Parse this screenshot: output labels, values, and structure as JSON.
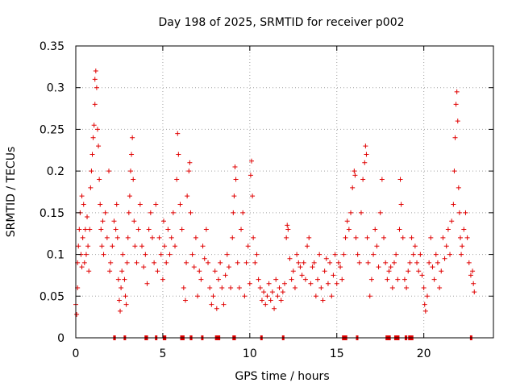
{
  "chart_data": {
    "type": "scatter",
    "title": "Day 198 of 2025, SRMTID for receiver p002",
    "xlabel": "GPS time / hours",
    "ylabel": "SRMTID / TECUs",
    "xlim": [
      0,
      24
    ],
    "ylim": [
      0,
      0.35
    ],
    "xticks": [
      0,
      5,
      10,
      15,
      20
    ],
    "xtick_labels": [
      "0",
      "5",
      "10",
      "15",
      "20"
    ],
    "yticks": [
      0,
      0.05,
      0.1,
      0.15,
      0.2,
      0.25,
      0.3,
      0.35
    ],
    "ytick_labels": [
      "0",
      "0.05",
      "0.1",
      "0.15",
      "0.2",
      "0.25",
      "0.3",
      "0.35"
    ],
    "grid": true,
    "marker": "+",
    "color": "#e00000",
    "series": [
      {
        "name": "SRMTID",
        "points": [
          [
            0.0,
            0.04
          ],
          [
            0.05,
            0.028
          ],
          [
            0.1,
            0.06
          ],
          [
            0.1,
            0.09
          ],
          [
            0.15,
            0.11
          ],
          [
            0.2,
            0.13
          ],
          [
            0.25,
            0.15
          ],
          [
            0.3,
            0.1
          ],
          [
            0.35,
            0.17
          ],
          [
            0.35,
            0.085
          ],
          [
            0.4,
            0.12
          ],
          [
            0.45,
            0.16
          ],
          [
            0.5,
            0.09
          ],
          [
            0.55,
            0.13
          ],
          [
            0.6,
            0.1
          ],
          [
            0.65,
            0.145
          ],
          [
            0.7,
            0.11
          ],
          [
            0.75,
            0.08
          ],
          [
            0.8,
            0.13
          ],
          [
            0.85,
            0.18
          ],
          [
            0.9,
            0.2
          ],
          [
            0.95,
            0.22
          ],
          [
            1.0,
            0.24
          ],
          [
            1.05,
            0.255
          ],
          [
            1.1,
            0.28
          ],
          [
            1.1,
            0.31
          ],
          [
            1.15,
            0.32
          ],
          [
            1.2,
            0.3
          ],
          [
            1.25,
            0.25
          ],
          [
            1.3,
            0.23
          ],
          [
            1.35,
            0.19
          ],
          [
            1.4,
            0.16
          ],
          [
            1.45,
            0.13
          ],
          [
            1.5,
            0.11
          ],
          [
            1.55,
            0.14
          ],
          [
            1.6,
            0.1
          ],
          [
            1.7,
            0.15
          ],
          [
            1.8,
            0.12
          ],
          [
            1.9,
            0.2
          ],
          [
            1.95,
            0.08
          ],
          [
            2.0,
            0.09
          ],
          [
            2.1,
            0.11
          ],
          [
            2.2,
            0.14
          ],
          [
            2.3,
            0.13
          ],
          [
            2.35,
            0.16
          ],
          [
            2.4,
            0.12
          ],
          [
            2.45,
            0.07
          ],
          [
            2.5,
            0.045
          ],
          [
            2.55,
            0.032
          ],
          [
            2.6,
            0.06
          ],
          [
            2.65,
            0.08
          ],
          [
            2.7,
            0.1
          ],
          [
            2.8,
            0.07
          ],
          [
            2.85,
            0.05
          ],
          [
            2.9,
            0.04
          ],
          [
            2.95,
            0.09
          ],
          [
            3.0,
            0.12
          ],
          [
            3.05,
            0.15
          ],
          [
            3.1,
            0.17
          ],
          [
            3.15,
            0.2
          ],
          [
            3.2,
            0.22
          ],
          [
            3.25,
            0.24
          ],
          [
            3.3,
            0.19
          ],
          [
            3.35,
            0.14
          ],
          [
            3.4,
            0.11
          ],
          [
            3.5,
            0.09
          ],
          [
            3.6,
            0.13
          ],
          [
            3.7,
            0.16
          ],
          [
            3.8,
            0.11
          ],
          [
            3.9,
            0.085
          ],
          [
            4.0,
            0.1
          ],
          [
            4.1,
            0.065
          ],
          [
            4.2,
            0.13
          ],
          [
            4.3,
            0.15
          ],
          [
            4.4,
            0.12
          ],
          [
            4.5,
            0.09
          ],
          [
            4.6,
            0.16
          ],
          [
            4.7,
            0.08
          ],
          [
            4.8,
            0.12
          ],
          [
            4.9,
            0.1
          ],
          [
            5.0,
            0.07
          ],
          [
            5.05,
            0.14
          ],
          [
            5.1,
            0.11
          ],
          [
            5.2,
            0.09
          ],
          [
            5.3,
            0.13
          ],
          [
            5.4,
            0.1
          ],
          [
            5.5,
            0.12
          ],
          [
            5.6,
            0.15
          ],
          [
            5.7,
            0.11
          ],
          [
            5.8,
            0.19
          ],
          [
            5.85,
            0.245
          ],
          [
            5.9,
            0.22
          ],
          [
            6.0,
            0.16
          ],
          [
            6.1,
            0.13
          ],
          [
            6.2,
            0.06
          ],
          [
            6.3,
            0.045
          ],
          [
            6.35,
            0.09
          ],
          [
            6.4,
            0.17
          ],
          [
            6.5,
            0.2
          ],
          [
            6.55,
            0.21
          ],
          [
            6.6,
            0.15
          ],
          [
            6.7,
            0.1
          ],
          [
            6.8,
            0.085
          ],
          [
            6.9,
            0.12
          ],
          [
            7.0,
            0.05
          ],
          [
            7.1,
            0.08
          ],
          [
            7.2,
            0.07
          ],
          [
            7.3,
            0.11
          ],
          [
            7.4,
            0.095
          ],
          [
            7.5,
            0.13
          ],
          [
            7.6,
            0.09
          ],
          [
            7.7,
            0.06
          ],
          [
            7.8,
            0.04
          ],
          [
            7.9,
            0.05
          ],
          [
            8.0,
            0.08
          ],
          [
            8.1,
            0.035
          ],
          [
            8.2,
            0.07
          ],
          [
            8.3,
            0.09
          ],
          [
            8.4,
            0.06
          ],
          [
            8.5,
            0.04
          ],
          [
            8.6,
            0.075
          ],
          [
            8.7,
            0.1
          ],
          [
            8.8,
            0.085
          ],
          [
            8.9,
            0.06
          ],
          [
            9.0,
            0.12
          ],
          [
            9.05,
            0.15
          ],
          [
            9.1,
            0.17
          ],
          [
            9.15,
            0.205
          ],
          [
            9.2,
            0.19
          ],
          [
            9.3,
            0.09
          ],
          [
            9.4,
            0.06
          ],
          [
            9.5,
            0.13
          ],
          [
            9.6,
            0.15
          ],
          [
            9.7,
            0.05
          ],
          [
            9.8,
            0.09
          ],
          [
            9.9,
            0.11
          ],
          [
            10.0,
            0.065
          ],
          [
            10.05,
            0.195
          ],
          [
            10.1,
            0.212
          ],
          [
            10.15,
            0.17
          ],
          [
            10.2,
            0.12
          ],
          [
            10.3,
            0.09
          ],
          [
            10.4,
            0.1
          ],
          [
            10.5,
            0.07
          ],
          [
            10.6,
            0.06
          ],
          [
            10.7,
            0.045
          ],
          [
            10.8,
            0.055
          ],
          [
            10.9,
            0.04
          ],
          [
            11.0,
            0.05
          ],
          [
            11.1,
            0.065
          ],
          [
            11.2,
            0.045
          ],
          [
            11.3,
            0.055
          ],
          [
            11.4,
            0.035
          ],
          [
            11.5,
            0.07
          ],
          [
            11.6,
            0.05
          ],
          [
            11.7,
            0.06
          ],
          [
            11.8,
            0.045
          ],
          [
            11.9,
            0.055
          ],
          [
            12.0,
            0.065
          ],
          [
            12.1,
            0.12
          ],
          [
            12.15,
            0.135
          ],
          [
            12.2,
            0.13
          ],
          [
            12.3,
            0.095
          ],
          [
            12.4,
            0.07
          ],
          [
            12.5,
            0.08
          ],
          [
            12.6,
            0.06
          ],
          [
            12.7,
            0.1
          ],
          [
            12.8,
            0.09
          ],
          [
            12.9,
            0.085
          ],
          [
            13.0,
            0.075
          ],
          [
            13.1,
            0.09
          ],
          [
            13.2,
            0.07
          ],
          [
            13.3,
            0.11
          ],
          [
            13.4,
            0.12
          ],
          [
            13.5,
            0.065
          ],
          [
            13.6,
            0.085
          ],
          [
            13.7,
            0.09
          ],
          [
            13.8,
            0.05
          ],
          [
            13.9,
            0.07
          ],
          [
            14.0,
            0.1
          ],
          [
            14.1,
            0.06
          ],
          [
            14.2,
            0.045
          ],
          [
            14.3,
            0.08
          ],
          [
            14.4,
            0.095
          ],
          [
            14.5,
            0.065
          ],
          [
            14.6,
            0.09
          ],
          [
            14.7,
            0.05
          ],
          [
            14.8,
            0.075
          ],
          [
            14.9,
            0.1
          ],
          [
            15.0,
            0.065
          ],
          [
            15.1,
            0.09
          ],
          [
            15.2,
            0.085
          ],
          [
            15.3,
            0.07
          ],
          [
            15.4,
            0.1
          ],
          [
            15.5,
            0.12
          ],
          [
            15.6,
            0.14
          ],
          [
            15.7,
            0.13
          ],
          [
            15.8,
            0.15
          ],
          [
            15.9,
            0.18
          ],
          [
            16.0,
            0.2
          ],
          [
            16.05,
            0.195
          ],
          [
            16.1,
            0.12
          ],
          [
            16.2,
            0.1
          ],
          [
            16.3,
            0.09
          ],
          [
            16.4,
            0.15
          ],
          [
            16.5,
            0.19
          ],
          [
            16.6,
            0.21
          ],
          [
            16.65,
            0.23
          ],
          [
            16.7,
            0.22
          ],
          [
            16.75,
            0.12
          ],
          [
            16.8,
            0.09
          ],
          [
            16.9,
            0.05
          ],
          [
            17.0,
            0.07
          ],
          [
            17.1,
            0.1
          ],
          [
            17.2,
            0.13
          ],
          [
            17.3,
            0.11
          ],
          [
            17.4,
            0.085
          ],
          [
            17.5,
            0.15
          ],
          [
            17.6,
            0.19
          ],
          [
            17.7,
            0.12
          ],
          [
            17.8,
            0.09
          ],
          [
            17.9,
            0.07
          ],
          [
            18.0,
            0.08
          ],
          [
            18.1,
            0.085
          ],
          [
            18.2,
            0.06
          ],
          [
            18.3,
            0.09
          ],
          [
            18.4,
            0.1
          ],
          [
            18.5,
            0.07
          ],
          [
            18.6,
            0.13
          ],
          [
            18.65,
            0.19
          ],
          [
            18.7,
            0.16
          ],
          [
            18.8,
            0.12
          ],
          [
            18.9,
            0.07
          ],
          [
            19.0,
            0.06
          ],
          [
            19.1,
            0.08
          ],
          [
            19.2,
            0.09
          ],
          [
            19.3,
            0.12
          ],
          [
            19.4,
            0.1
          ],
          [
            19.5,
            0.11
          ],
          [
            19.6,
            0.09
          ],
          [
            19.7,
            0.08
          ],
          [
            19.8,
            0.1
          ],
          [
            19.9,
            0.075
          ],
          [
            20.0,
            0.06
          ],
          [
            20.05,
            0.04
          ],
          [
            20.1,
            0.032
          ],
          [
            20.2,
            0.05
          ],
          [
            20.3,
            0.09
          ],
          [
            20.4,
            0.12
          ],
          [
            20.5,
            0.085
          ],
          [
            20.6,
            0.07
          ],
          [
            20.7,
            0.1
          ],
          [
            20.8,
            0.09
          ],
          [
            20.9,
            0.06
          ],
          [
            21.0,
            0.08
          ],
          [
            21.1,
            0.12
          ],
          [
            21.2,
            0.095
          ],
          [
            21.3,
            0.11
          ],
          [
            21.4,
            0.13
          ],
          [
            21.5,
            0.1
          ],
          [
            21.6,
            0.14
          ],
          [
            21.7,
            0.16
          ],
          [
            21.75,
            0.2
          ],
          [
            21.8,
            0.24
          ],
          [
            21.85,
            0.28
          ],
          [
            21.9,
            0.295
          ],
          [
            21.95,
            0.26
          ],
          [
            22.0,
            0.18
          ],
          [
            22.05,
            0.15
          ],
          [
            22.1,
            0.12
          ],
          [
            22.15,
            0.1
          ],
          [
            22.2,
            0.11
          ],
          [
            22.3,
            0.13
          ],
          [
            22.4,
            0.15
          ],
          [
            22.5,
            0.12
          ],
          [
            22.6,
            0.09
          ],
          [
            22.7,
            0.075
          ],
          [
            22.8,
            0.08
          ],
          [
            22.85,
            0.065
          ],
          [
            22.9,
            0.055
          ]
        ]
      }
    ],
    "zero_segments": [
      [
        2.15,
        2.3
      ],
      [
        2.75,
        2.85
      ],
      [
        3.95,
        4.15
      ],
      [
        4.55,
        4.65
      ],
      [
        5.0,
        5.2
      ],
      [
        6.0,
        6.25
      ],
      [
        6.55,
        6.7
      ],
      [
        7.2,
        7.3
      ],
      [
        8.0,
        8.3
      ],
      [
        9.0,
        9.2
      ],
      [
        10.6,
        10.7
      ],
      [
        11.85,
        11.95
      ],
      [
        15.3,
        15.6
      ],
      [
        16.1,
        16.2
      ],
      [
        17.8,
        18.1
      ],
      [
        18.3,
        18.6
      ],
      [
        18.9,
        19.05
      ],
      [
        19.1,
        19.4
      ],
      [
        22.65,
        22.75
      ]
    ]
  }
}
